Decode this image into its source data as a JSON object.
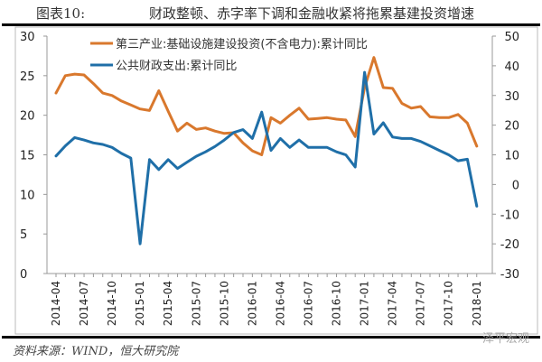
{
  "header": {
    "figure_no": "图表10:",
    "title": "财政整顿、赤字率下调和金融收紧将拖累基建投资增速"
  },
  "footer": {
    "source": "资料来源：WIND，恒大研究院",
    "watermark": "泽平宏观"
  },
  "chart_data": {
    "type": "line",
    "title": "财政整顿、赤字率下调和金融收紧将拖累基建投资增速",
    "x_start": "2014-04",
    "x_ticks": [
      "2014-04",
      "2014-07",
      "2014-10",
      "2015-01",
      "2015-04",
      "2015-07",
      "2015-10",
      "2016-01",
      "2016-04",
      "2016-07",
      "2016-10",
      "2017-01",
      "2017-04",
      "2017-07",
      "2017-10",
      "2018-01"
    ],
    "left_axis": {
      "ylim": [
        0,
        30
      ],
      "ticks": [
        "0",
        "5",
        "10",
        "15",
        "20",
        "25",
        "30"
      ]
    },
    "right_axis": {
      "ylim": [
        -30,
        50
      ],
      "ticks": [
        "-30",
        "-20",
        "-10",
        "0",
        "10",
        "20",
        "30",
        "40",
        "50"
      ]
    },
    "legend_position": "top-left",
    "series": [
      {
        "name": "第三产业:基础设施建设投资(不含电力):累计同比",
        "axis": "left",
        "color": "#D9782D",
        "values": [
          22.8,
          25.0,
          25.2,
          25.1,
          24.0,
          22.8,
          22.5,
          21.8,
          21.3,
          20.8,
          20.6,
          23.1,
          20.5,
          18.0,
          19.0,
          18.2,
          18.4,
          18.0,
          17.7,
          17.8,
          16.5,
          15.5,
          15.0,
          19.7,
          19.0,
          20.0,
          20.9,
          19.5,
          19.6,
          19.7,
          19.5,
          19.4,
          17.3,
          23.5,
          27.3,
          23.5,
          23.4,
          21.5,
          20.9,
          21.1,
          19.8,
          19.7,
          19.7,
          20.1,
          19.0,
          16.1
        ]
      },
      {
        "name": "公共财政支出:累计同比",
        "axis": "right",
        "color": "#1F6FA8",
        "values": [
          9.6,
          13.0,
          15.8,
          15.0,
          14.0,
          13.5,
          12.5,
          10.5,
          8.9,
          -20.0,
          8.4,
          5.0,
          8.4,
          5.4,
          7.5,
          9.5,
          11.0,
          12.8,
          15.0,
          17.5,
          18.5,
          15.5,
          24.4,
          11.5,
          15.5,
          12.5,
          15.0,
          12.5,
          12.5,
          12.5,
          11.0,
          10.0,
          5.9,
          37.8,
          17.0,
          20.8,
          16.0,
          15.5,
          15.5,
          14.5,
          13.0,
          11.5,
          10.0,
          8.0,
          8.5,
          -7.3
        ]
      }
    ]
  }
}
